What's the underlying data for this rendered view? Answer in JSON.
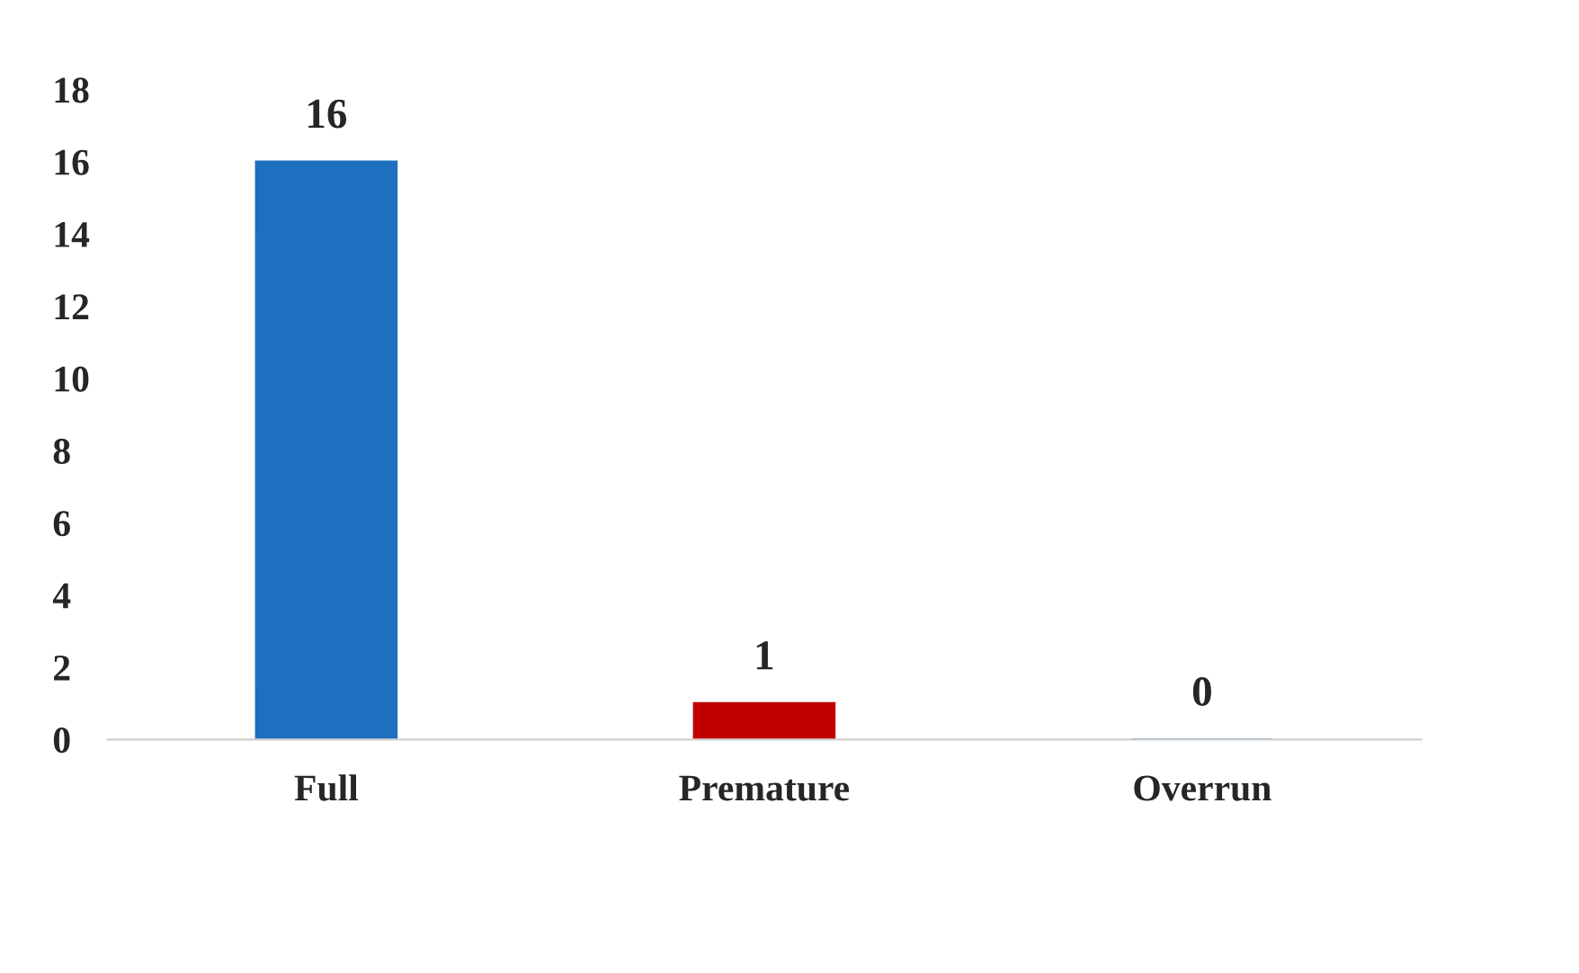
{
  "chart_data": {
    "type": "bar",
    "categories": [
      "Full",
      "Premature",
      "Overrun"
    ],
    "values": [
      16,
      1,
      0
    ],
    "colors": [
      "#1f6fc0",
      "#c00000",
      "#1f6fc0"
    ],
    "ylim": [
      0,
      18
    ],
    "yticks": [
      0,
      2,
      4,
      6,
      8,
      10,
      12,
      14,
      16,
      18
    ],
    "data_labels": true,
    "grid": false,
    "legend": false
  }
}
